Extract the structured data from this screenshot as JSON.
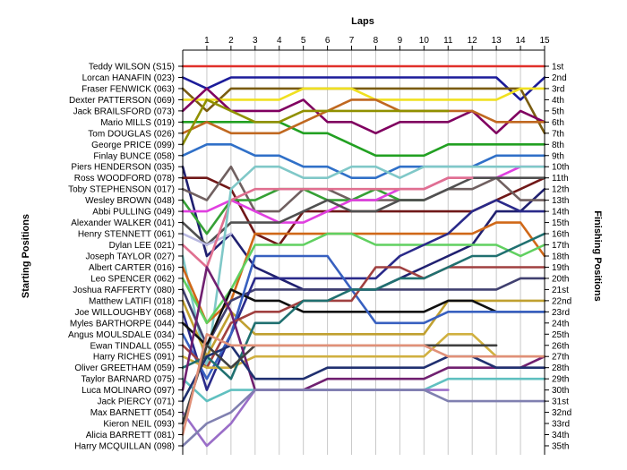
{
  "chart_data": {
    "type": "line",
    "title": "",
    "x_axis_title": "Laps",
    "y_axis_left_title": "Starting Positions",
    "y_axis_right_title": "Finishing Positions",
    "x_ticks": [
      1,
      2,
      3,
      4,
      5,
      6,
      7,
      8,
      9,
      10,
      11,
      12,
      13,
      14,
      15
    ],
    "y_range": [
      1,
      35
    ],
    "y_inverted": true,
    "grid": "vertical",
    "legend": "none",
    "starting_labels": [
      "Teddy WILSON (S15)",
      "Lorcan HANAFIN (023)",
      "Fraser FENWICK (063)",
      "Dexter PATTERSON (069)",
      "Jack BRAILSFORD (073)",
      "Mario MILLS (019)",
      "Tom DOUGLAS (026)",
      "George PRICE (099)",
      "Finlay BUNCE (058)",
      "Piers HENDERSON (035)",
      "Ross WOODFORD (078)",
      "Toby STEPHENSON (017)",
      "Wesley BROWN (048)",
      "Abbi PULLING (049)",
      "Alexander WALKER (041)",
      "Henry STENNETT (061)",
      "Dylan LEE (021)",
      "Joseph TAYLOR (027)",
      "Albert CARTER (016)",
      "Leo SPENCER (062)",
      "Joshua RAFFERTY (080)",
      "Matthew LATIFI (018)",
      "Joe WILLOUGHBY (068)",
      "Myles BARTHORPE (044)",
      "Angus MOULSDALE (034)",
      "Ewan TINDALL (055)",
      "Harry RICHES (091)",
      "Oliver GREETHAM (059)",
      "Taylor BARNARD (075)",
      "Luca MOLINARO (097)",
      "Jack PIERCY (071)",
      "Max BARNETT (054)",
      "Kieron NEIL (093)",
      "Alicia BARRETT (081)",
      "Harry MCQUILLAN (098)"
    ],
    "finishing_labels": [
      "1st",
      "2nd",
      "3rd",
      "4th",
      "5th",
      "6th",
      "7th",
      "8th",
      "9th",
      "10th",
      "11th",
      "12th",
      "13th",
      "14th",
      "15th",
      "16th",
      "17th",
      "18th",
      "19th",
      "20th",
      "21st",
      "22nd",
      "23rd",
      "24th",
      "25th",
      "26th",
      "27th",
      "28th",
      "29th",
      "30th",
      "31st",
      "32nd",
      "33rd",
      "34th",
      "35th"
    ],
    "series": [
      {
        "color": "#e0302a",
        "values": [
          1,
          1,
          1,
          1,
          1,
          1,
          1,
          1,
          1,
          1,
          1,
          1,
          1,
          1,
          1,
          1
        ]
      },
      {
        "color": "#1c1c9a",
        "values": [
          2,
          3,
          2,
          2,
          2,
          2,
          2,
          2,
          2,
          2,
          2,
          2,
          2,
          2,
          4,
          2
        ]
      },
      {
        "color": "#7a5c10",
        "values": [
          3,
          5,
          3,
          3,
          3,
          3,
          3,
          3,
          3,
          3,
          3,
          3,
          3,
          3,
          3,
          7
        ]
      },
      {
        "color": "#f0e020",
        "values": [
          4,
          4,
          4,
          4,
          4,
          3,
          3,
          3,
          4,
          4,
          4,
          4,
          4,
          4,
          3,
          3
        ]
      },
      {
        "color": "#800060",
        "values": [
          5,
          3,
          5,
          5,
          5,
          4,
          6,
          6,
          7,
          6,
          6,
          6,
          5,
          7,
          5,
          6
        ]
      },
      {
        "color": "#22a022",
        "values": [
          6,
          6,
          6,
          6,
          6,
          7,
          7,
          8,
          9,
          9,
          9,
          8,
          8,
          8,
          8,
          8
        ]
      },
      {
        "color": "#c06820",
        "values": [
          7,
          6,
          7,
          7,
          7,
          6,
          5,
          4,
          4,
          5,
          5,
          5,
          5,
          6,
          6,
          6
        ]
      },
      {
        "color": "#909000",
        "values": [
          8,
          4,
          5,
          6,
          6,
          5,
          5,
          5,
          5,
          5,
          5,
          5
        ]
      },
      {
        "color": "#3070c8",
        "values": [
          9,
          8,
          8,
          9,
          9,
          10,
          10,
          11,
          11,
          10,
          10,
          10,
          10,
          9,
          9,
          9
        ]
      },
      {
        "color": "#202070",
        "values": [
          10,
          18,
          16,
          19,
          20,
          21,
          21,
          21,
          21,
          20,
          19,
          18,
          17,
          14,
          14,
          12
        ]
      },
      {
        "color": "#701818",
        "values": [
          11,
          11,
          12,
          16,
          17,
          14,
          14,
          14,
          14,
          14,
          14,
          14,
          14,
          13,
          12,
          11
        ]
      },
      {
        "color": "#706060",
        "values": [
          12,
          13,
          10,
          14,
          14,
          12,
          12,
          13,
          13,
          13,
          13,
          12,
          12,
          11,
          13,
          13
        ]
      },
      {
        "color": "#35a035",
        "values": [
          13,
          16,
          13,
          13,
          12,
          12,
          13,
          13,
          12,
          13,
          13
        ]
      },
      {
        "color": "#e040e0",
        "values": [
          14,
          14,
          13,
          14,
          15,
          15,
          14,
          13,
          13,
          12,
          12,
          11,
          11,
          11,
          10,
          10
        ]
      },
      {
        "color": "#505050",
        "values": [
          15,
          17,
          15,
          15,
          15,
          14,
          13,
          14,
          14,
          13,
          13,
          12,
          11,
          11,
          11,
          11
        ]
      },
      {
        "color": "#b8b8e0",
        "values": [
          16,
          17,
          16
        ]
      },
      {
        "color": "#e07090",
        "values": [
          17,
          19,
          13,
          12,
          12,
          12,
          12,
          12,
          12,
          12,
          12,
          11,
          11
        ]
      },
      {
        "color": "#80c8c8",
        "values": [
          18,
          28,
          12,
          10,
          10,
          11,
          11,
          10,
          10,
          11,
          10,
          10,
          10,
          10,
          10,
          10
        ]
      },
      {
        "color": "#d06818",
        "values": [
          19,
          24,
          22,
          16,
          16,
          16,
          16,
          16,
          16,
          16,
          16,
          16,
          16,
          15,
          15,
          18
        ]
      },
      {
        "color": "#60d060",
        "values": [
          20,
          24,
          21,
          17,
          17,
          17,
          16,
          16,
          17,
          17,
          17,
          17,
          17,
          17,
          18,
          17
        ]
      },
      {
        "color": "#404070",
        "values": [
          21,
          26,
          22,
          21,
          21,
          21,
          21,
          21,
          21,
          21,
          21,
          21,
          21,
          21,
          20,
          20
        ]
      },
      {
        "color": "#c0a030",
        "values": [
          22,
          27,
          23,
          25,
          25,
          25,
          25,
          25,
          25,
          25,
          25,
          22,
          22,
          22,
          22,
          22
        ]
      },
      {
        "color": "#2a2a8a",
        "values": [
          23,
          30,
          25,
          20,
          20,
          20,
          20,
          20,
          20,
          18,
          17,
          16,
          14,
          13,
          14,
          14
        ]
      },
      {
        "color": "#101010",
        "values": [
          24,
          26,
          21,
          22,
          22,
          23,
          23,
          23,
          23,
          23,
          23,
          22,
          22,
          23,
          23,
          23
        ]
      },
      {
        "color": "#3860c0",
        "values": [
          25,
          29,
          25,
          18,
          18,
          18,
          18,
          21,
          24,
          24,
          24,
          23,
          23,
          23,
          23,
          23
        ]
      },
      {
        "color": "#a04040",
        "values": [
          26,
          28,
          24,
          23,
          23,
          22,
          22,
          22,
          19,
          19,
          20,
          19,
          19,
          19,
          19,
          19
        ]
      },
      {
        "color": "#d0b040",
        "values": [
          27,
          28,
          28,
          27,
          27,
          27,
          27,
          27,
          27,
          27,
          27,
          25,
          25,
          27,
          27,
          27
        ]
      },
      {
        "color": "#207070",
        "values": [
          28,
          27,
          29,
          24,
          24,
          22,
          22,
          21,
          21,
          20,
          20,
          19,
          18,
          18,
          17,
          16
        ]
      },
      {
        "color": "#60c0c0",
        "values": [
          29,
          31,
          30,
          30,
          30,
          30,
          30,
          30,
          30,
          30,
          30,
          29,
          29,
          29,
          29,
          29
        ]
      },
      {
        "color": "#702070",
        "values": [
          30,
          19,
          23,
          30,
          30,
          30,
          29,
          29,
          29,
          29,
          29,
          28,
          28,
          28,
          28,
          27
        ]
      },
      {
        "color": "#203070",
        "values": [
          31,
          27,
          26,
          29,
          29,
          29,
          28,
          28,
          28,
          28,
          28,
          27,
          27,
          28,
          28,
          28
        ]
      },
      {
        "color": "#9a6ec8",
        "values": [
          32,
          35,
          33,
          30,
          30,
          30,
          30,
          30,
          30,
          30,
          30,
          30
        ]
      },
      {
        "color": "#404040",
        "values": [
          33,
          26,
          28,
          26,
          26,
          26,
          26,
          26,
          26,
          26,
          26,
          26,
          26,
          26
        ]
      },
      {
        "color": "#e09078",
        "values": [
          34,
          25,
          26,
          26,
          26,
          26,
          26,
          26,
          26,
          26,
          26,
          27,
          27,
          27,
          27,
          27
        ]
      },
      {
        "color": "#8080b0",
        "values": [
          35,
          33,
          32,
          30,
          30,
          30,
          30,
          30,
          30,
          30,
          30,
          31,
          31,
          31,
          31,
          31
        ]
      }
    ]
  }
}
